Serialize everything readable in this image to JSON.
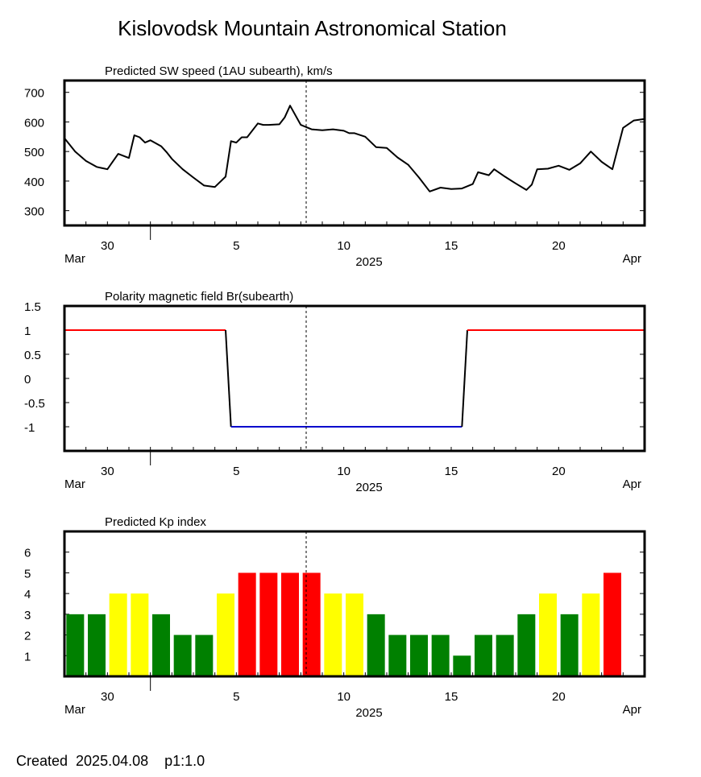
{
  "title": "Kislovodsk Mountain Astronomical Station",
  "footer": "Created  2025.04.08    p1:1.0",
  "colors": {
    "axis": "#000000",
    "positive": "#ff0000",
    "negative": "#0000cc",
    "kp_quiet": "#008000",
    "kp_active": "#ffff00",
    "kp_storm": "#ff0000"
  },
  "date_axis": {
    "start": "2025-03-28",
    "end": "2025-04-24",
    "tick_labels": [
      {
        "date": "2025-03-30",
        "label": "30"
      },
      {
        "date": "2025-04-05",
        "label": "5"
      },
      {
        "date": "2025-04-10",
        "label": "10"
      },
      {
        "date": "2025-04-15",
        "label": "15"
      },
      {
        "date": "2025-04-20",
        "label": "20"
      }
    ],
    "month_start": "Mar",
    "month_end": "Apr",
    "year": "2025",
    "current_date": "2025-04-08T06:00"
  },
  "chart_data": [
    {
      "type": "line",
      "title": "Predicted SW speed (1AU subearth), km/s",
      "xlabel": "2025",
      "ylim": [
        250,
        740
      ],
      "yticks": [
        300,
        400,
        500,
        600,
        700
      ],
      "x": [
        "2025-03-28T00:00",
        "2025-03-28T12:00",
        "2025-03-29T00:00",
        "2025-03-29T12:00",
        "2025-03-30T00:00",
        "2025-03-30T12:00",
        "2025-03-31T00:00",
        "2025-03-31T06:00",
        "2025-03-31T12:00",
        "2025-03-31T18:00",
        "2025-04-01T00:00",
        "2025-04-01T12:00",
        "2025-04-01T18:00",
        "2025-04-02T00:00",
        "2025-04-02T12:00",
        "2025-04-03T00:00",
        "2025-04-03T12:00",
        "2025-04-04T00:00",
        "2025-04-04T12:00",
        "2025-04-04T18:00",
        "2025-04-05T00:00",
        "2025-04-05T06:00",
        "2025-04-05T12:00",
        "2025-04-06T00:00",
        "2025-04-06T06:00",
        "2025-04-06T12:00",
        "2025-04-07T00:00",
        "2025-04-07T06:00",
        "2025-04-07T12:00",
        "2025-04-08T00:00",
        "2025-04-08T12:00",
        "2025-04-09T00:00",
        "2025-04-09T12:00",
        "2025-04-10T00:00",
        "2025-04-10T06:00",
        "2025-04-10T12:00",
        "2025-04-11T00:00",
        "2025-04-11T12:00",
        "2025-04-12T00:00",
        "2025-04-12T12:00",
        "2025-04-13T00:00",
        "2025-04-13T12:00",
        "2025-04-14T00:00",
        "2025-04-14T12:00",
        "2025-04-15T00:00",
        "2025-04-15T12:00",
        "2025-04-16T00:00",
        "2025-04-16T06:00",
        "2025-04-16T18:00",
        "2025-04-17T00:00",
        "2025-04-17T12:00",
        "2025-04-18T00:00",
        "2025-04-18T12:00",
        "2025-04-18T18:00",
        "2025-04-19T00:00",
        "2025-04-19T12:00",
        "2025-04-20T00:00",
        "2025-04-20T12:00",
        "2025-04-21T00:00",
        "2025-04-21T12:00",
        "2025-04-22T00:00",
        "2025-04-22T12:00",
        "2025-04-23T00:00",
        "2025-04-23T12:00",
        "2025-04-24T00:00"
      ],
      "y": [
        545,
        500,
        468,
        448,
        440,
        492,
        478,
        555,
        548,
        530,
        538,
        518,
        498,
        475,
        440,
        412,
        385,
        380,
        415,
        535,
        530,
        548,
        548,
        595,
        590,
        590,
        592,
        615,
        655,
        590,
        575,
        572,
        575,
        570,
        562,
        562,
        550,
        515,
        512,
        480,
        455,
        412,
        365,
        378,
        373,
        375,
        390,
        430,
        420,
        440,
        415,
        392,
        370,
        388,
        440,
        442,
        452,
        438,
        460,
        500,
        465,
        440,
        580,
        605,
        610
      ]
    },
    {
      "type": "line",
      "title": "Polarity magnetic field  Br(subearth)",
      "xlabel": "2025",
      "ylim": [
        -1.5,
        1.5
      ],
      "yticks": [
        1.5,
        1,
        0.5,
        0,
        -0.5,
        -1
      ],
      "ytick_labels": [
        "1.5",
        "1",
        "0.5",
        "0",
        "-0.5",
        "-1"
      ],
      "x": [
        "2025-03-28T00:00",
        "2025-04-04T12:00",
        "2025-04-04T18:00",
        "2025-04-15T12:00",
        "2025-04-15T18:00",
        "2025-04-24T00:00"
      ],
      "y": [
        1,
        1,
        -1,
        -1,
        1,
        1
      ]
    },
    {
      "type": "bar",
      "title": "Predicted Kp index",
      "xlabel": "2025",
      "ylim": [
        0,
        7
      ],
      "yticks": [
        1,
        2,
        3,
        4,
        5,
        6
      ],
      "categories": [
        "2025-03-28",
        "2025-03-29",
        "2025-03-30",
        "2025-03-31",
        "2025-04-01",
        "2025-04-02",
        "2025-04-03",
        "2025-04-04",
        "2025-04-05",
        "2025-04-06",
        "2025-04-07",
        "2025-04-08",
        "2025-04-09",
        "2025-04-10",
        "2025-04-11",
        "2025-04-12",
        "2025-04-13",
        "2025-04-14",
        "2025-04-15",
        "2025-04-16",
        "2025-04-17",
        "2025-04-18",
        "2025-04-19",
        "2025-04-20",
        "2025-04-21",
        "2025-04-22",
        "2025-04-23"
      ],
      "values": [
        3,
        3,
        4,
        4,
        3,
        2,
        2,
        4,
        5,
        5,
        5,
        5,
        4,
        4,
        3,
        2,
        2,
        2,
        1,
        2,
        2,
        3,
        4,
        3,
        4,
        5,
        0
      ]
    }
  ]
}
